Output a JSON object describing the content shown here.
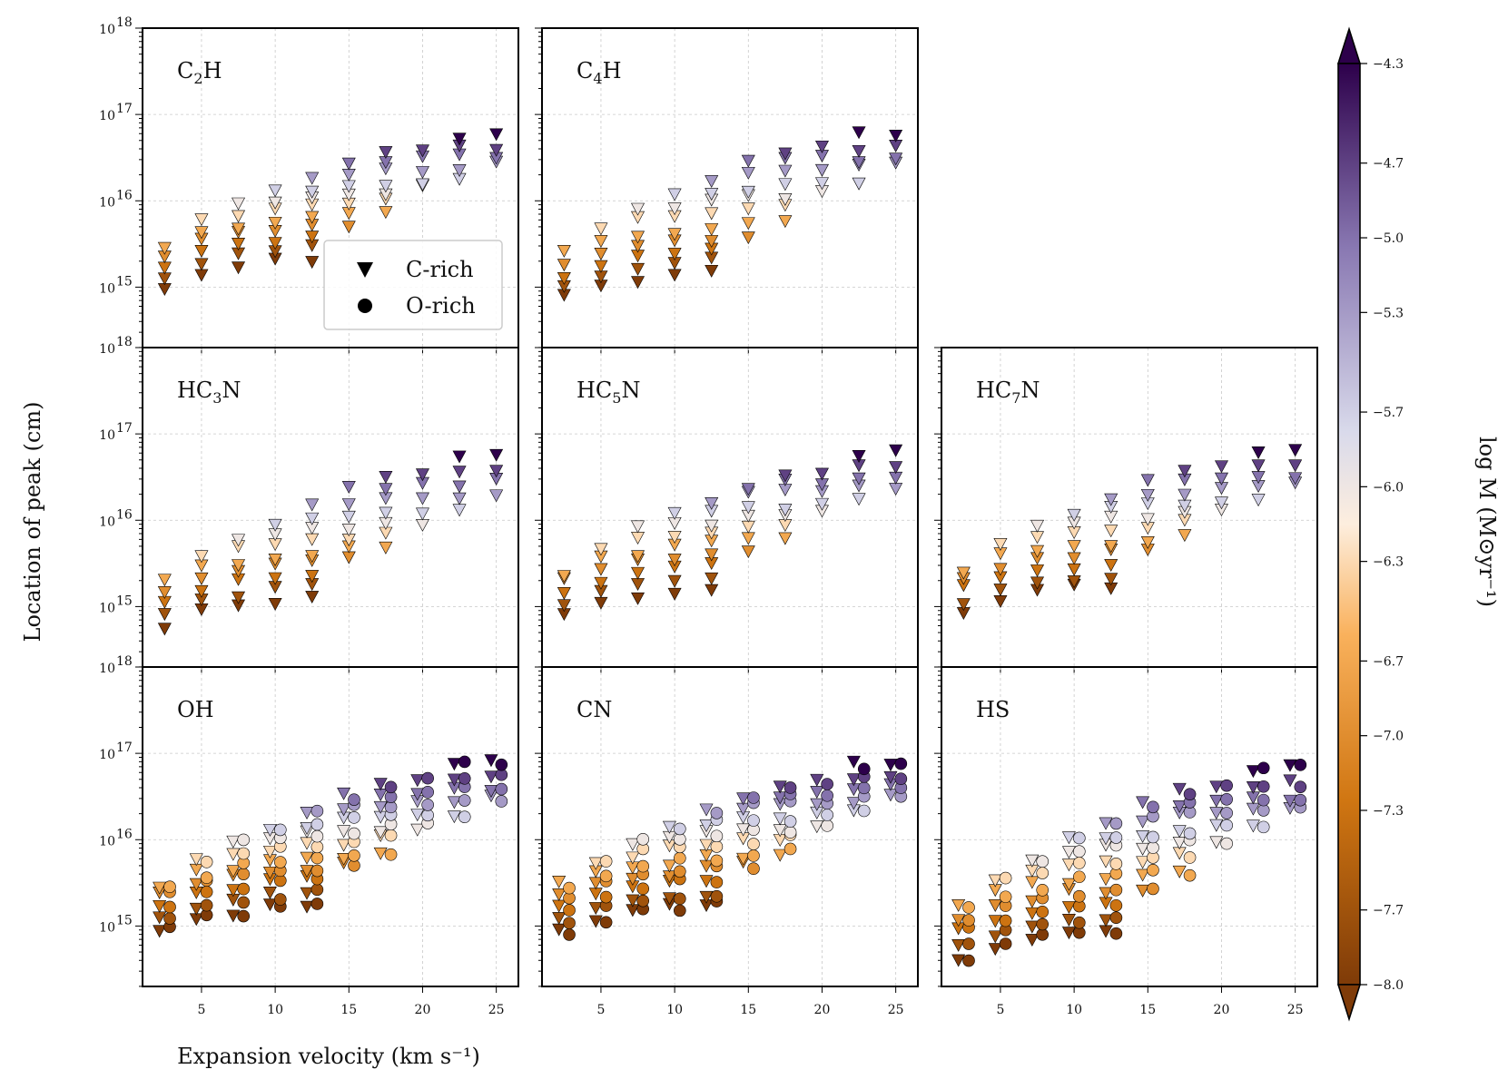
{
  "chart_data": {
    "type": "scatter",
    "xlabel": "Expansion velocity (km s⁻¹)",
    "ylabel": "Location of peak (cm)",
    "xlim": [
      1,
      26.5
    ],
    "ylim_log10": [
      14.3,
      18.0
    ],
    "xticks": [
      5,
      10,
      15,
      20,
      25
    ],
    "ytick_labels": [
      {
        "exp": "15",
        "label": "10^15"
      },
      {
        "exp": "16",
        "label": "10^16"
      },
      {
        "exp": "17",
        "label": "10^17"
      },
      {
        "exp": "18",
        "label": "10^18"
      }
    ],
    "grid": true,
    "legend": {
      "location": "lower-right of C2H panel",
      "entries": [
        {
          "marker": "triangle-down",
          "label": "C-rich"
        },
        {
          "marker": "circle",
          "label": "O-rich"
        }
      ]
    },
    "colorbar": {
      "label": "log Ṁ (M⊙yr⁻¹)",
      "ticks": [
        "−4.3",
        "−4.7",
        "−5.0",
        "−5.3",
        "−5.7",
        "−6.0",
        "−6.3",
        "−6.7",
        "−7.0",
        "−7.3",
        "−7.7",
        "−8.0"
      ],
      "range": [
        -8.0,
        -4.3
      ],
      "cmap": "PuOr"
    },
    "mass_loss_rates": [
      -8.0,
      -7.7,
      -7.3,
      -7.0,
      -6.7,
      -6.3,
      -6.0,
      -5.7,
      -5.3,
      -5.0,
      -4.7,
      -4.3
    ],
    "velocities": [
      2.5,
      5,
      7.5,
      10,
      12.5,
      15,
      17.5,
      20,
      22.5,
      25
    ],
    "mdot_ranges_per_velocity": [
      [
        -8.0,
        -6.7
      ],
      [
        -8.0,
        -6.3
      ],
      [
        -8.0,
        -6.0
      ],
      [
        -8.0,
        -5.7
      ],
      [
        -8.0,
        -5.3
      ],
      [
        -7.0,
        -5.0
      ],
      [
        -6.7,
        -4.7
      ],
      [
        -6.0,
        -4.7
      ],
      [
        -5.7,
        -4.3
      ],
      [
        -5.3,
        -4.3
      ]
    ],
    "panels": [
      {
        "label": "C",
        "sub": "2",
        "tail": "H",
        "types": [
          "C"
        ],
        "base_log10": 16.0,
        "slope_log10": 0.35,
        "noise_log10": 0.05
      },
      {
        "label": "C",
        "sub": "4",
        "tail": "H",
        "types": [
          "C"
        ],
        "base_log10": 15.94,
        "slope_log10": 0.4,
        "noise_log10": 0.05
      },
      {
        "label": "HC",
        "sub": "3",
        "tail": "N",
        "types": [
          "C"
        ],
        "base_log10": 15.86,
        "slope_log10": 0.4,
        "noise_log10": 0.05
      },
      {
        "label": "HC",
        "sub": "5",
        "tail": "N",
        "types": [
          "C"
        ],
        "base_log10": 15.94,
        "slope_log10": 0.38,
        "noise_log10": 0.05
      },
      {
        "label": "HC",
        "sub": "7",
        "tail": "N",
        "types": [
          "C"
        ],
        "base_log10": 15.97,
        "slope_log10": 0.38,
        "noise_log10": 0.05
      },
      {
        "label": "OH",
        "sub": "",
        "tail": "",
        "types": [
          "C",
          "O"
        ],
        "base_log10": 16.02,
        "slope_log10": 0.4,
        "noise_log10": 0.05
      },
      {
        "label": "CN",
        "sub": "",
        "tail": "",
        "types": [
          "C",
          "O"
        ],
        "base_log10": 16.02,
        "slope_log10": 0.4,
        "noise_log10": 0.05
      },
      {
        "label": "HS",
        "sub": "",
        "tail": "",
        "types": [
          "C",
          "O"
        ],
        "base_log10": 15.85,
        "slope_log10": 0.47,
        "noise_log10": 0.05
      }
    ]
  }
}
